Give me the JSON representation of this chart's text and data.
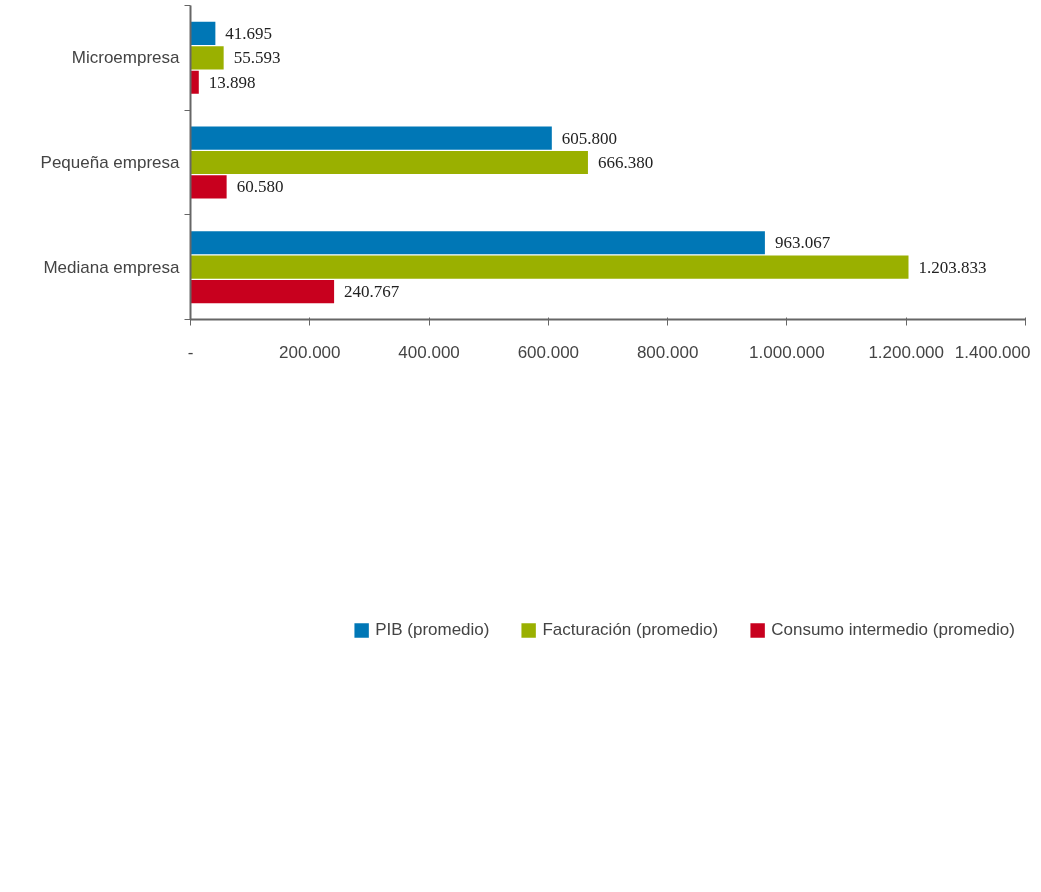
{
  "chart_data": {
    "type": "bar",
    "orientation": "horizontal",
    "categories": [
      "Microempresa",
      "Pequeña empresa",
      "Mediana empresa"
    ],
    "series": [
      {
        "name": "PIB (promedio)",
        "color": "#0077b6",
        "values": [
          41695,
          605800,
          963067
        ],
        "value_labels": [
          "41.695",
          "605.800",
          "963.067"
        ]
      },
      {
        "name": "Facturación (promedio)",
        "color": "#9ab000",
        "values": [
          55593,
          666380,
          1203833
        ],
        "value_labels": [
          "55.593",
          "666.380",
          "1.203.833"
        ]
      },
      {
        "name": "Consumo intermedio (promedio)",
        "color": "#c8001e",
        "values": [
          13898,
          60580,
          240767
        ],
        "value_labels": [
          "13.898",
          "60.580",
          "240.767"
        ]
      }
    ],
    "xlim": [
      0,
      1400000
    ],
    "xticks": [
      {
        "value": 0,
        "label": "-"
      },
      {
        "value": 200000,
        "label": "200.000"
      },
      {
        "value": 400000,
        "label": "400.000"
      },
      {
        "value": 600000,
        "label": "600.000"
      },
      {
        "value": 800000,
        "label": "800.000"
      },
      {
        "value": 1000000,
        "label": "1.000.000"
      },
      {
        "value": 1200000,
        "label": "1.200.000"
      },
      {
        "value": 1400000,
        "label": "1.400.000"
      }
    ],
    "grid": false,
    "legend": "bottom"
  }
}
